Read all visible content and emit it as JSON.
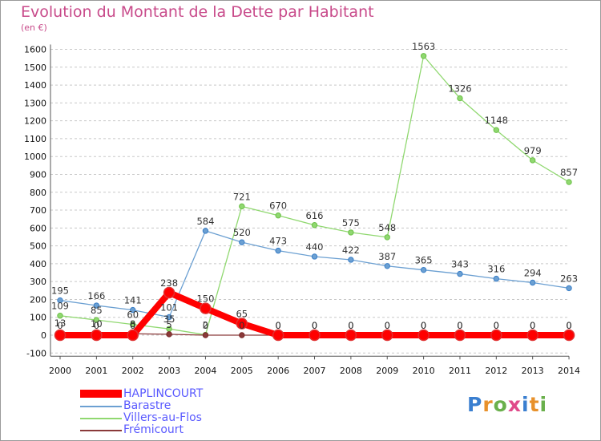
{
  "title": "Evolution du Montant de la Dette par Habitant",
  "subtitle": "(en €)",
  "logo": {
    "text": "Proxiti",
    "colors": [
      "#3a7fd0",
      "#e8912b",
      "#6ab04c",
      "#e04a8a",
      "#3a7fd0",
      "#e8912b",
      "#6ab04c"
    ]
  },
  "chart_data": {
    "type": "line",
    "x": [
      "2000",
      "2001",
      "2002",
      "2003",
      "2004",
      "2005",
      "2006",
      "2007",
      "2008",
      "2009",
      "2010",
      "2011",
      "2012",
      "2013",
      "2014"
    ],
    "ylim": [
      -100,
      1600
    ],
    "yticks": [
      -100,
      0,
      100,
      200,
      300,
      400,
      500,
      600,
      700,
      800,
      900,
      1000,
      1100,
      1200,
      1300,
      1400,
      1500,
      1600
    ],
    "grid": "dashed-horizontal",
    "legend_position": "bottom-left",
    "series": [
      {
        "name": "HAPLINCOURT",
        "color": "#ff0000",
        "marker_color": "#e03030",
        "thick": true,
        "values": [
          0,
          0,
          0,
          238,
          150,
          65,
          0,
          0,
          0,
          0,
          0,
          0,
          0,
          0,
          0
        ],
        "labels": [
          "0",
          "0",
          "0",
          "238",
          "150",
          "65",
          "0",
          "0",
          "0",
          "0",
          "0",
          "0",
          "0",
          "0",
          "0"
        ]
      },
      {
        "name": "Barastre",
        "color": "#6ca0d2",
        "marker_color": "#3a7fc8",
        "thick": false,
        "values": [
          195,
          166,
          141,
          101,
          584,
          520,
          473,
          440,
          422,
          387,
          365,
          343,
          316,
          294,
          263
        ],
        "labels": [
          "195",
          "166",
          "141",
          "101",
          "584",
          "520",
          "473",
          "440",
          "422",
          "387",
          "365",
          "343",
          "316",
          "294",
          "263"
        ]
      },
      {
        "name": "Villers-au-Flos",
        "color": "#90d870",
        "marker_color": "#6cc048",
        "thick": false,
        "values": [
          109,
          85,
          60,
          35,
          2,
          721,
          670,
          616,
          575,
          548,
          1563,
          1326,
          1148,
          979,
          857
        ],
        "labels": [
          "109",
          "85",
          "60",
          "35",
          "2",
          "721",
          "670",
          "616",
          "575",
          "548",
          "1563",
          "1326",
          "1148",
          "979",
          "857"
        ]
      },
      {
        "name": "Frémicourt",
        "color": "#8a3a3a",
        "marker_color": "#7a2a2a",
        "thick": false,
        "values": [
          13,
          10,
          8,
          5,
          0,
          0,
          0,
          0,
          0,
          0,
          0,
          0,
          0,
          0,
          0
        ],
        "labels": [
          "13",
          "10",
          "8",
          "5",
          "0",
          "0",
          "0",
          "0",
          "0",
          "0",
          "0",
          "0",
          "0",
          "0",
          "0"
        ]
      }
    ]
  }
}
